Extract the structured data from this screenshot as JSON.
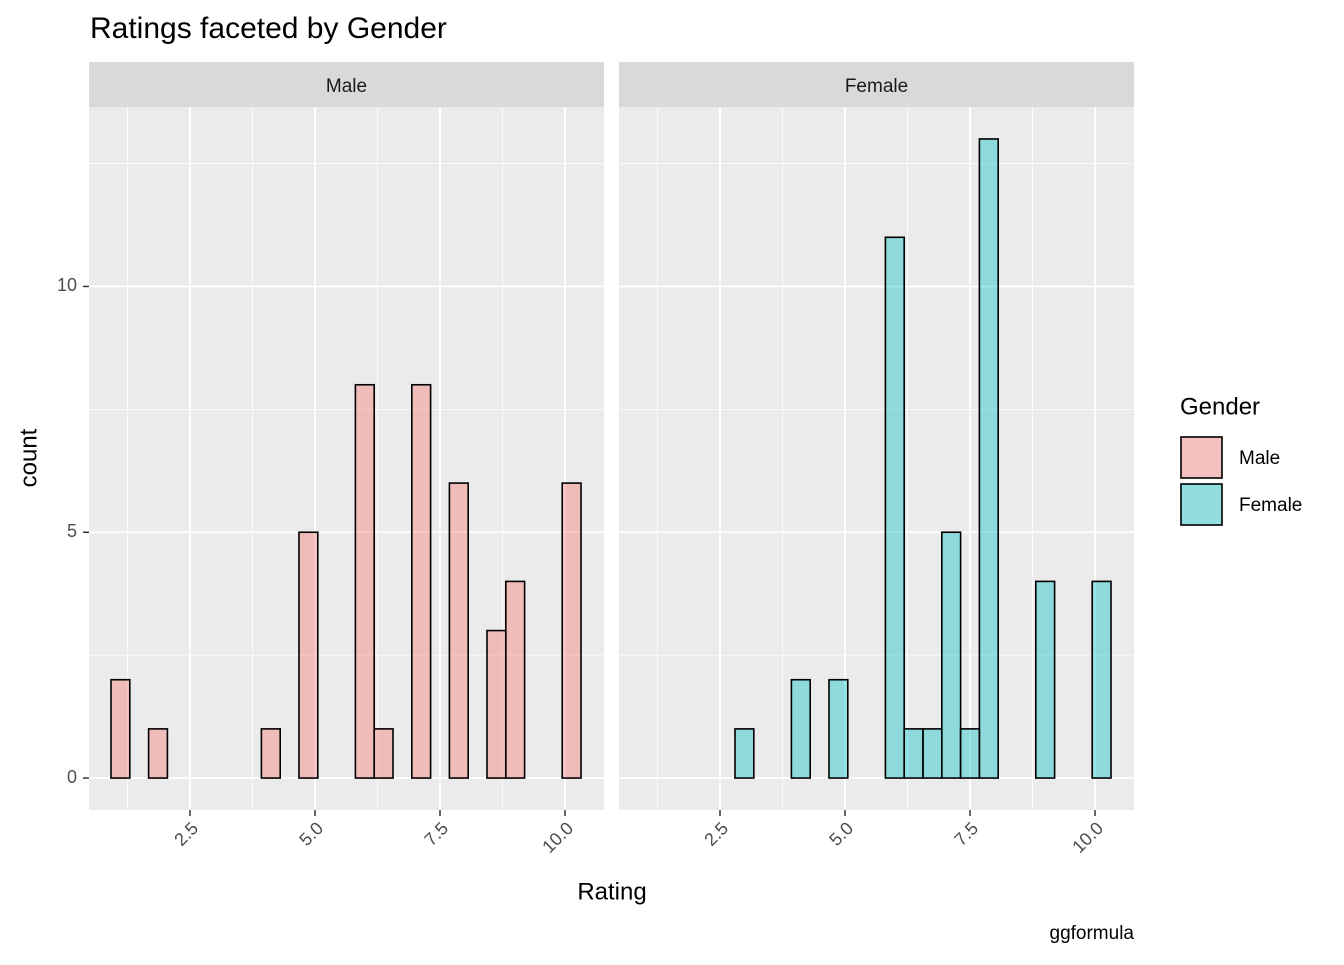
{
  "chart_data": {
    "type": "histogram",
    "title": "Ratings faceted by Gender",
    "x_label": "Rating",
    "y_label": "count",
    "legend_title": "Gender",
    "caption": "ggformula",
    "bins": [
      0.92,
      1.296,
      1.672,
      2.048,
      2.424,
      2.8,
      3.176,
      3.552,
      3.928,
      4.304,
      4.68,
      5.056,
      5.432,
      5.808,
      6.184,
      6.56,
      6.936,
      7.312,
      7.688,
      8.064,
      8.44,
      8.816,
      9.192,
      9.568,
      9.944,
      10.32
    ],
    "series": [
      {
        "name": "Male",
        "color": "#F8766D",
        "values": [
          2,
          0,
          1,
          0,
          0,
          0,
          0,
          0,
          1,
          0,
          5,
          0,
          0,
          8,
          1,
          0,
          8,
          0,
          6,
          0,
          3,
          4,
          0,
          0,
          6
        ]
      },
      {
        "name": "Female",
        "color": "#00BFC4",
        "values": [
          0,
          0,
          0,
          0,
          0,
          1,
          0,
          0,
          2,
          0,
          2,
          0,
          0,
          11,
          1,
          1,
          5,
          1,
          13,
          0,
          0,
          4,
          0,
          0,
          4
        ]
      }
    ],
    "fill_opacity": 0.4,
    "xlim": [
      0.48,
      10.78
    ],
    "xticks": [
      {
        "value": 2.5,
        "label": "2.5"
      },
      {
        "value": 5,
        "label": "5.0"
      },
      {
        "value": 7.5,
        "label": "7.5"
      },
      {
        "value": 10,
        "label": "10.0"
      }
    ],
    "minor_xticks": [
      1.25,
      3.75,
      6.25,
      8.75
    ],
    "ylim": [
      -0.65,
      13.65
    ],
    "yticks": [
      0,
      5,
      10
    ],
    "minor_yticks": [
      2.5,
      7.5,
      12.5
    ],
    "grid": true,
    "legend": "right"
  }
}
